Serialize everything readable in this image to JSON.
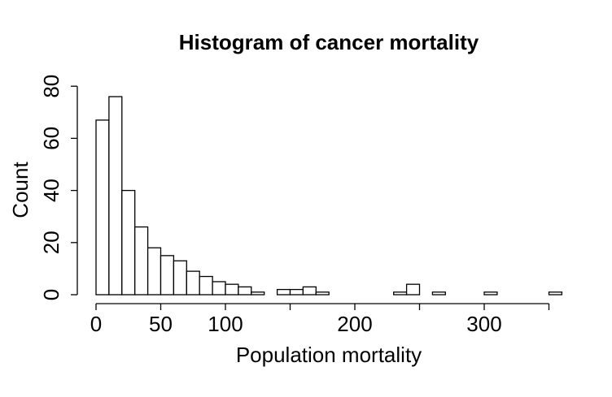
{
  "chart_data": {
    "type": "bar",
    "title": "Histogram of cancer mortality",
    "xlabel": "Population mortality",
    "ylabel": "Count",
    "bin_width": 10,
    "bins": [
      {
        "start": 0,
        "end": 10,
        "count": 67
      },
      {
        "start": 10,
        "end": 20,
        "count": 76
      },
      {
        "start": 20,
        "end": 30,
        "count": 40
      },
      {
        "start": 30,
        "end": 40,
        "count": 26
      },
      {
        "start": 40,
        "end": 50,
        "count": 18
      },
      {
        "start": 50,
        "end": 60,
        "count": 15
      },
      {
        "start": 60,
        "end": 70,
        "count": 13
      },
      {
        "start": 70,
        "end": 80,
        "count": 9
      },
      {
        "start": 80,
        "end": 90,
        "count": 7
      },
      {
        "start": 90,
        "end": 100,
        "count": 5
      },
      {
        "start": 100,
        "end": 110,
        "count": 4
      },
      {
        "start": 110,
        "end": 120,
        "count": 3
      },
      {
        "start": 120,
        "end": 130,
        "count": 1
      },
      {
        "start": 130,
        "end": 140,
        "count": 0
      },
      {
        "start": 140,
        "end": 150,
        "count": 2
      },
      {
        "start": 150,
        "end": 160,
        "count": 2
      },
      {
        "start": 160,
        "end": 170,
        "count": 3
      },
      {
        "start": 170,
        "end": 180,
        "count": 1
      },
      {
        "start": 180,
        "end": 190,
        "count": 0
      },
      {
        "start": 190,
        "end": 200,
        "count": 0
      },
      {
        "start": 200,
        "end": 210,
        "count": 0
      },
      {
        "start": 210,
        "end": 220,
        "count": 0
      },
      {
        "start": 220,
        "end": 230,
        "count": 0
      },
      {
        "start": 230,
        "end": 240,
        "count": 1
      },
      {
        "start": 240,
        "end": 250,
        "count": 4
      },
      {
        "start": 250,
        "end": 260,
        "count": 0
      },
      {
        "start": 260,
        "end": 270,
        "count": 1
      },
      {
        "start": 270,
        "end": 280,
        "count": 0
      },
      {
        "start": 280,
        "end": 290,
        "count": 0
      },
      {
        "start": 290,
        "end": 300,
        "count": 0
      },
      {
        "start": 300,
        "end": 310,
        "count": 1
      },
      {
        "start": 310,
        "end": 320,
        "count": 0
      },
      {
        "start": 320,
        "end": 330,
        "count": 0
      },
      {
        "start": 330,
        "end": 340,
        "count": 0
      },
      {
        "start": 340,
        "end": 350,
        "count": 0
      },
      {
        "start": 350,
        "end": 360,
        "count": 1
      }
    ],
    "x_axis": {
      "range": [
        0,
        350
      ],
      "tick_values": [
        0,
        50,
        100,
        150,
        200,
        250,
        300,
        350
      ],
      "tick_labels": [
        "0",
        "50",
        "100",
        "",
        "200",
        "",
        "300",
        ""
      ]
    },
    "y_axis": {
      "range": [
        0,
        80
      ],
      "tick_values": [
        0,
        20,
        40,
        60,
        80
      ],
      "tick_labels": [
        "0",
        "20",
        "40",
        "60",
        "80"
      ]
    },
    "grid": false,
    "legend": "none"
  }
}
